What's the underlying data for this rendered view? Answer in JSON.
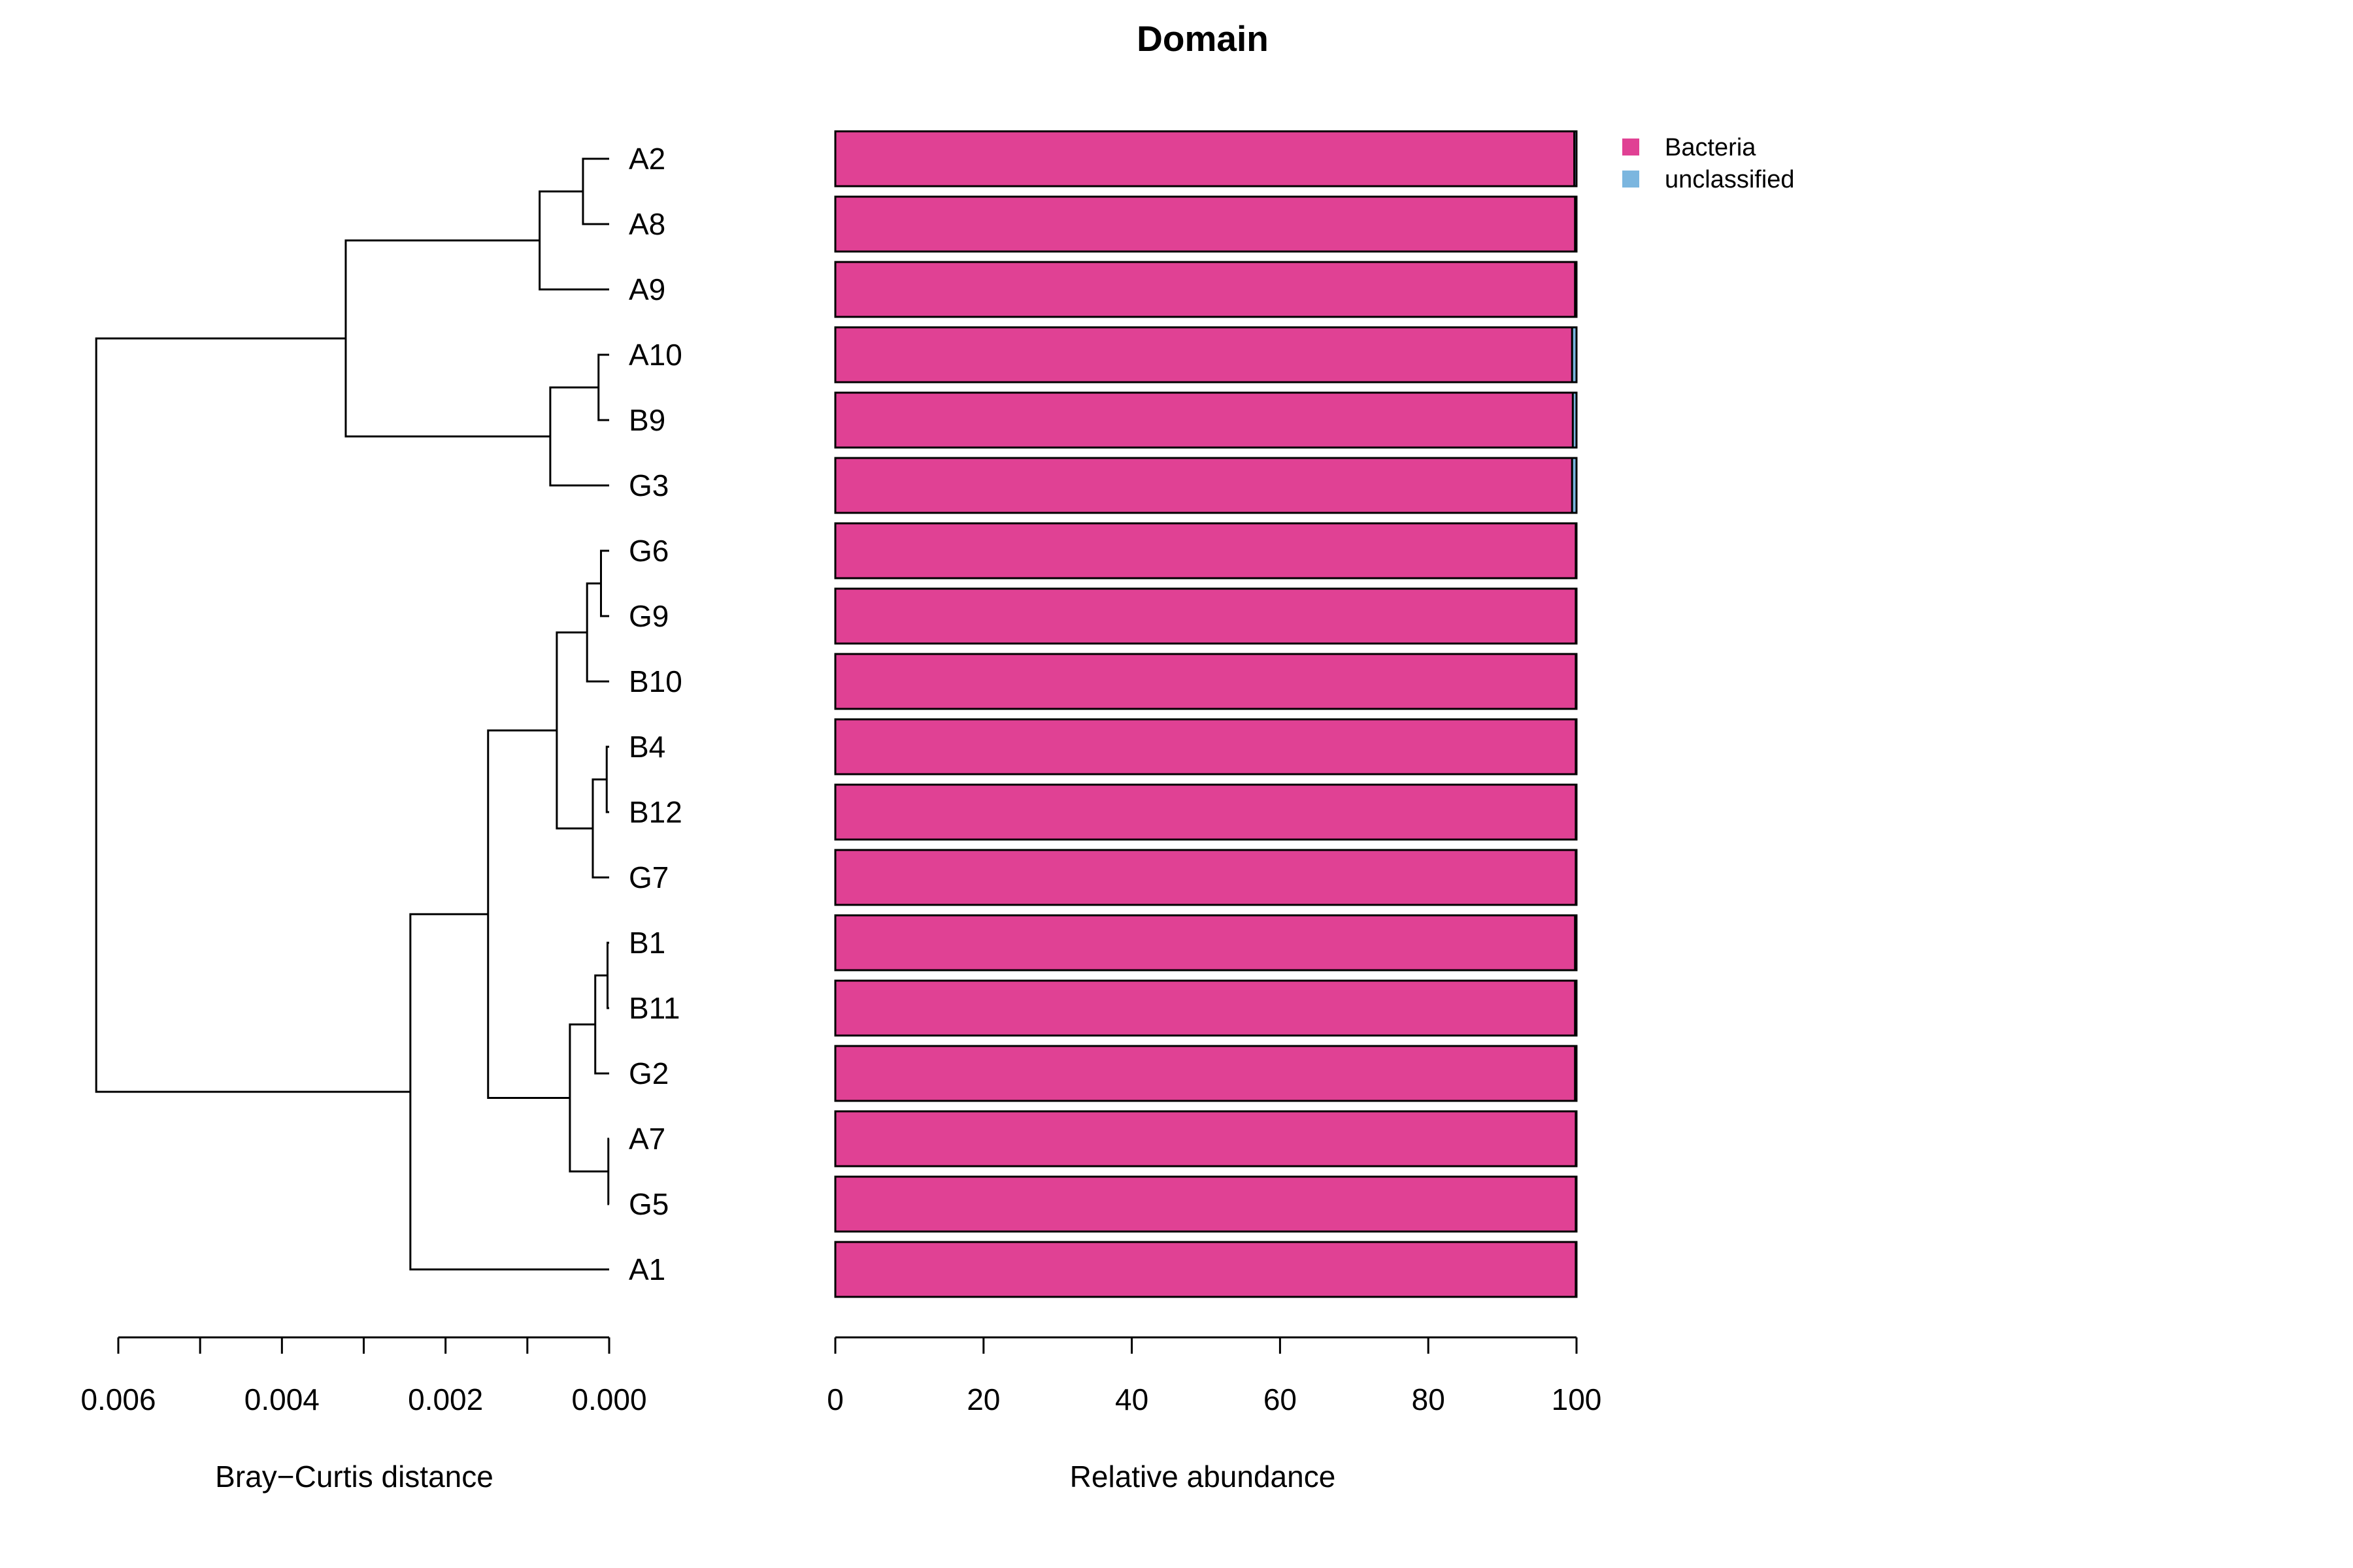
{
  "chart_data": {
    "type": "bar",
    "title": "Domain",
    "colors": {
      "Bacteria": "#e04194",
      "unclassified": "#7bb6df"
    },
    "legend": {
      "position": "top-right",
      "entries": [
        "Bacteria",
        "unclassified"
      ]
    },
    "samples": [
      "A2",
      "A8",
      "A9",
      "A10",
      "B9",
      "G3",
      "G6",
      "G9",
      "B10",
      "B4",
      "B12",
      "G7",
      "B1",
      "B11",
      "G2",
      "A7",
      "G5",
      "A1"
    ],
    "series": [
      {
        "name": "Bacteria",
        "values": [
          99.7,
          99.8,
          99.8,
          99.4,
          99.5,
          99.4,
          99.9,
          99.9,
          99.9,
          99.9,
          99.9,
          99.9,
          99.8,
          99.8,
          99.8,
          99.9,
          99.9,
          99.9
        ]
      },
      {
        "name": "unclassified",
        "values": [
          0.3,
          0.2,
          0.2,
          0.6,
          0.5,
          0.6,
          0.1,
          0.1,
          0.1,
          0.1,
          0.1,
          0.1,
          0.2,
          0.2,
          0.2,
          0.1,
          0.1,
          0.1
        ]
      }
    ],
    "bar_axis": {
      "xlabel": "Relative abundance",
      "xlim": [
        0,
        100
      ],
      "ticks": [
        0,
        20,
        40,
        60,
        80,
        100
      ],
      "tick_labels": [
        "0",
        "20",
        "40",
        "60",
        "80",
        "100"
      ]
    },
    "dendrogram": {
      "xlabel": "Bray−Curtis distance",
      "xlim": [
        0.006,
        0
      ],
      "ticks": [
        0.006,
        0.005,
        0.004,
        0.003,
        0.002,
        0.001,
        0
      ],
      "tick_labels": [
        "0.006",
        "",
        "0.004",
        "",
        "0.002",
        "",
        "0.000"
      ],
      "merges": [
        {
          "a": "A2",
          "b": "A8",
          "height": 0.00032
        },
        {
          "a": 1,
          "b": "A9",
          "height": 0.00085
        },
        {
          "a": "A10",
          "b": "B9",
          "height": 0.00013
        },
        {
          "a": 3,
          "b": "G3",
          "height": 0.00072
        },
        {
          "a": 2,
          "b": 4,
          "height": 0.00322
        },
        {
          "a": "G6",
          "b": "G9",
          "height": 0.0001
        },
        {
          "a": 6,
          "b": "B10",
          "height": 0.00027
        },
        {
          "a": "B4",
          "b": "B12",
          "height": 3e-05
        },
        {
          "a": 8,
          "b": "G7",
          "height": 0.0002
        },
        {
          "a": 7,
          "b": 9,
          "height": 0.00064
        },
        {
          "a": "B1",
          "b": "B11",
          "height": 2e-05
        },
        {
          "a": 11,
          "b": "G2",
          "height": 0.00017
        },
        {
          "a": "A7",
          "b": "G5",
          "height": 1e-05
        },
        {
          "a": 12,
          "b": 13,
          "height": 0.00048
        },
        {
          "a": 10,
          "b": 14,
          "height": 0.00148
        },
        {
          "a": 15,
          "b": "A1",
          "height": 0.00243
        },
        {
          "a": 5,
          "b": 16,
          "height": 0.00627
        }
      ]
    }
  }
}
